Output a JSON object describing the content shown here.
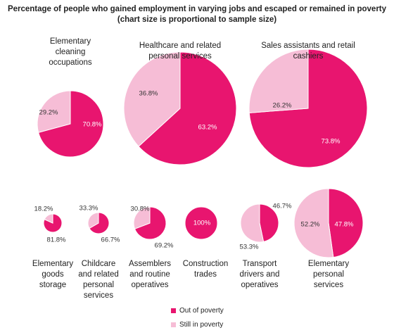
{
  "chart_data": {
    "type": "pie",
    "title_lines": [
      "Percentage of people who gained employment in varying jobs and escaped or remained in poverty",
      "(chart size is proportional to sample size)"
    ],
    "legend": [
      {
        "label": "Out of poverty",
        "color": "#e8156f"
      },
      {
        "label": "Still in poverty",
        "color": "#f6bdd6"
      }
    ],
    "legend_position": "bottom-center",
    "charts": [
      {
        "label_lines": [
          "Elementary",
          "cleaning",
          "occupations"
        ],
        "out_of_poverty": 70.8,
        "still_in_poverty": 29.2,
        "out_label": "70.8%",
        "still_label": "29.2%"
      },
      {
        "label_lines": [
          "Healthcare and related",
          "personal services"
        ],
        "out_of_poverty": 63.2,
        "still_in_poverty": 36.8,
        "out_label": "63.2%",
        "still_label": "36.8%"
      },
      {
        "label_lines": [
          "Sales assistants and retail",
          "cashiers"
        ],
        "out_of_poverty": 73.8,
        "still_in_poverty": 26.2,
        "out_label": "73.8%",
        "still_label": "26.2%"
      },
      {
        "label_lines": [
          "Elementary",
          "goods",
          "storage"
        ],
        "out_of_poverty": 81.8,
        "still_in_poverty": 18.2,
        "out_label": "81.8%",
        "still_label": "18.2%"
      },
      {
        "label_lines": [
          "Childcare",
          "and related",
          "personal",
          "services"
        ],
        "out_of_poverty": 66.7,
        "still_in_poverty": 33.3,
        "out_label": "66.7%",
        "still_label": "33.3%"
      },
      {
        "label_lines": [
          "Assemblers",
          "and routine",
          "operatives"
        ],
        "out_of_poverty": 69.2,
        "still_in_poverty": 30.8,
        "out_label": "69.2%",
        "still_label": "30.8%"
      },
      {
        "label_lines": [
          "Construction",
          "trades"
        ],
        "out_of_poverty": 100,
        "still_in_poverty": 0,
        "out_label": "100%",
        "still_label": ""
      },
      {
        "label_lines": [
          "Transport",
          "drivers and",
          "operatives"
        ],
        "out_of_poverty": 46.7,
        "still_in_poverty": 53.3,
        "out_label": "46.7%",
        "still_label": "53.3%"
      },
      {
        "label_lines": [
          "Elementary",
          "personal",
          "services"
        ],
        "out_of_poverty": 47.8,
        "still_in_poverty": 52.2,
        "out_label": "47.8%",
        "still_label": "52.2%"
      }
    ]
  }
}
